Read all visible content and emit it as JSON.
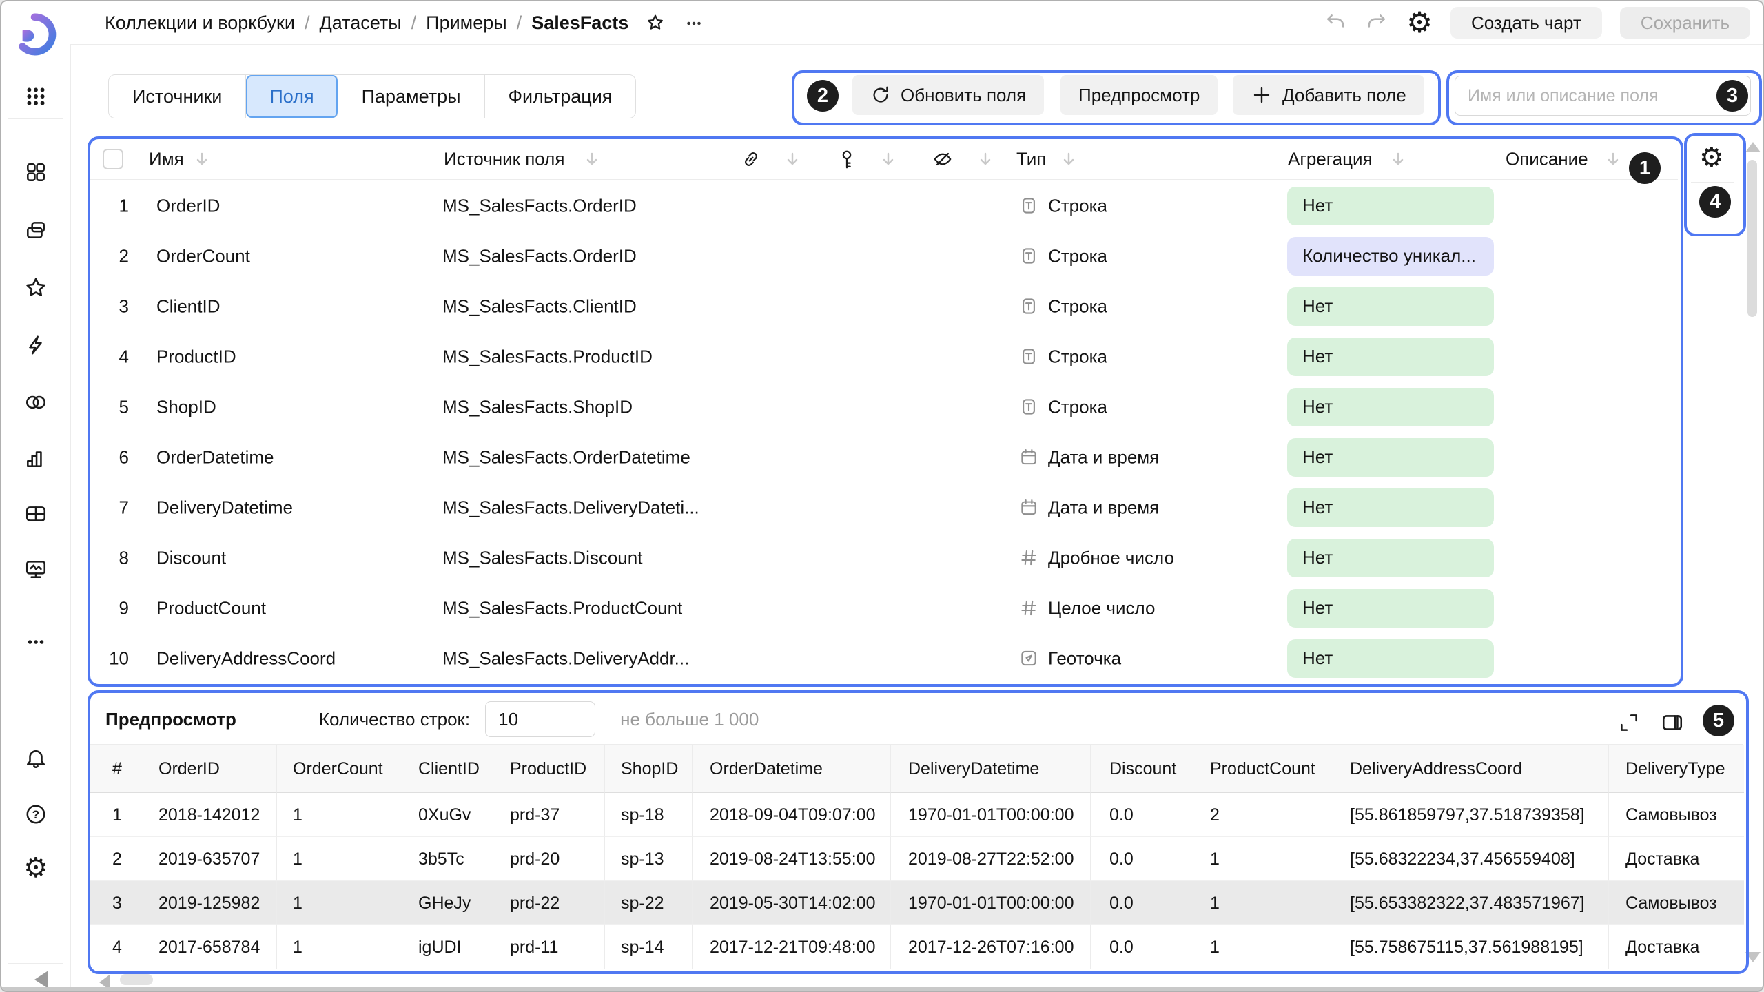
{
  "header": {
    "breadcrumbs": [
      "Коллекции и воркбуки",
      "Датасеты",
      "Примеры",
      "SalesFacts"
    ],
    "create_chart_label": "Создать чарт",
    "save_label": "Сохранить"
  },
  "tabs": [
    {
      "label": "Источники",
      "active": false
    },
    {
      "label": "Поля",
      "active": true
    },
    {
      "label": "Параметры",
      "active": false
    },
    {
      "label": "Фильтрация",
      "active": false
    }
  ],
  "toolbar": {
    "refresh_label": "Обновить поля",
    "preview_label": "Предпросмотр",
    "add_field_label": "Добавить поле",
    "search_placeholder": "Имя или описание поля"
  },
  "annotations": {
    "b1": "1",
    "b2": "2",
    "b3": "3",
    "b4": "4",
    "b5": "5"
  },
  "sidebar": {
    "icons": [
      "logo",
      "apps-grid-icon",
      "workbooks-icon",
      "collections-icon",
      "favorites-star-icon",
      "quick-actions-icon",
      "connections-icon",
      "charts-icon",
      "tables-icon",
      "dashboards-icon",
      "more-dots-icon",
      "notifications-bell-icon",
      "help-icon",
      "settings-gear-icon",
      "collapse-arrow-icon"
    ]
  },
  "fields_table": {
    "columns": {
      "name": "Имя",
      "source": "Источник поля",
      "type": "Тип",
      "aggregation": "Агрегация",
      "description": "Описание"
    },
    "rows": [
      {
        "n": "1",
        "name": "OrderID",
        "source": "MS_SalesFacts.OrderID",
        "type": "Строка",
        "type_icon": "string",
        "agg": "Нет",
        "agg_style": "green"
      },
      {
        "n": "2",
        "name": "OrderCount",
        "source": "MS_SalesFacts.OrderID",
        "type": "Строка",
        "type_icon": "string",
        "agg": "Количество уникал...",
        "agg_style": "violet"
      },
      {
        "n": "3",
        "name": "ClientID",
        "source": "MS_SalesFacts.ClientID",
        "type": "Строка",
        "type_icon": "string",
        "agg": "Нет",
        "agg_style": "green"
      },
      {
        "n": "4",
        "name": "ProductID",
        "source": "MS_SalesFacts.ProductID",
        "type": "Строка",
        "type_icon": "string",
        "agg": "Нет",
        "agg_style": "green"
      },
      {
        "n": "5",
        "name": "ShopID",
        "source": "MS_SalesFacts.ShopID",
        "type": "Строка",
        "type_icon": "string",
        "agg": "Нет",
        "agg_style": "green"
      },
      {
        "n": "6",
        "name": "OrderDatetime",
        "source": "MS_SalesFacts.OrderDatetime",
        "type": "Дата и время",
        "type_icon": "datetime",
        "agg": "Нет",
        "agg_style": "green"
      },
      {
        "n": "7",
        "name": "DeliveryDatetime",
        "source": "MS_SalesFacts.DeliveryDateti...",
        "type": "Дата и время",
        "type_icon": "datetime",
        "agg": "Нет",
        "agg_style": "green"
      },
      {
        "n": "8",
        "name": "Discount",
        "source": "MS_SalesFacts.Discount",
        "type": "Дробное число",
        "type_icon": "number",
        "agg": "Нет",
        "agg_style": "green"
      },
      {
        "n": "9",
        "name": "ProductCount",
        "source": "MS_SalesFacts.ProductCount",
        "type": "Целое число",
        "type_icon": "number",
        "agg": "Нет",
        "agg_style": "green"
      },
      {
        "n": "10",
        "name": "DeliveryAddressCoord",
        "source": "MS_SalesFacts.DeliveryAddr...",
        "type": "Геоточка",
        "type_icon": "geopoint",
        "agg": "Нет",
        "agg_style": "green"
      }
    ]
  },
  "preview": {
    "title": "Предпросмотр",
    "rows_label": "Количество строк:",
    "rows_value": "10",
    "rows_hint": "не больше 1 000",
    "columns": [
      "#",
      "OrderID",
      "OrderCount",
      "ClientID",
      "ProductID",
      "ShopID",
      "OrderDatetime",
      "DeliveryDatetime",
      "Discount",
      "ProductCount",
      "DeliveryAddressCoord",
      "DeliveryType"
    ],
    "rows": [
      [
        "1",
        "2018-142012",
        "1",
        "0XuGv",
        "prd-37",
        "sp-18",
        "2018-09-04T09:07:00",
        "1970-01-01T00:00:00",
        "0.0",
        "2",
        "[55.861859797,37.518739358]",
        "Самовывоз"
      ],
      [
        "2",
        "2019-635707",
        "1",
        "3b5Tc",
        "prd-20",
        "sp-13",
        "2019-08-24T13:55:00",
        "2019-08-27T22:52:00",
        "0.0",
        "1",
        "[55.68322234,37.456559408]",
        "Доставка"
      ],
      [
        "3",
        "2019-125982",
        "1",
        "GHeJy",
        "prd-22",
        "sp-22",
        "2019-05-30T14:02:00",
        "1970-01-01T00:00:00",
        "0.0",
        "1",
        "[55.653382322,37.483571967]",
        "Самовывоз"
      ],
      [
        "4",
        "2017-658784",
        "1",
        "igUDI",
        "prd-11",
        "sp-14",
        "2017-12-21T09:48:00",
        "2017-12-26T07:16:00",
        "0.0",
        "1",
        "[55.758675115,37.561988195]",
        "Доставка"
      ]
    ]
  },
  "colors": {
    "annotation_blue": "#5078f2",
    "active_tab_bg": "#d7e8fd",
    "active_tab_text": "#2a6fc9",
    "pill_green": "#d9f2dc",
    "pill_violet": "#e1e3fb",
    "button_gray": "#f1f1f1",
    "alt_row_gray": "#eaeaea"
  }
}
